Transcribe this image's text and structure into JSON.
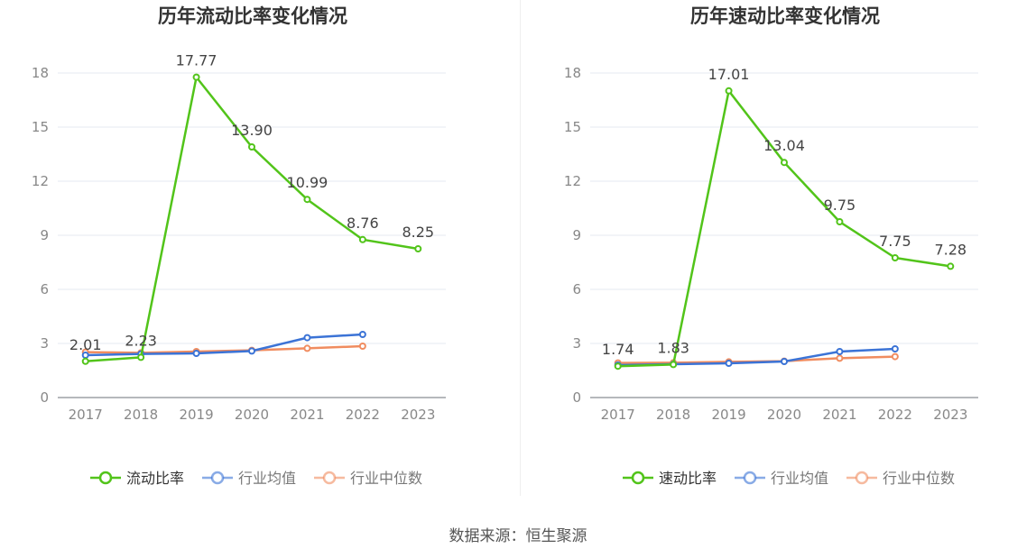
{
  "footer": {
    "source": "数据来源：恒生聚源"
  },
  "chart_data": [
    {
      "type": "line",
      "title": "历年流动比率变化情况",
      "categories": [
        "2017",
        "2018",
        "2019",
        "2020",
        "2021",
        "2022",
        "2023"
      ],
      "ylim": [
        0,
        18
      ],
      "yticks": [
        0,
        3,
        6,
        9,
        12,
        15,
        18
      ],
      "grid": true,
      "legend_position": "bottom",
      "series": [
        {
          "name": "流动比率",
          "color": "#52c41a",
          "labels": true,
          "values": [
            2.01,
            2.23,
            17.77,
            13.9,
            10.99,
            8.76,
            8.25
          ],
          "value_labels": [
            "2.01",
            "2.23",
            "17.77",
            "13.90",
            "10.99",
            "8.76",
            "8.25"
          ]
        },
        {
          "name": "行业均值",
          "color": "#3b73d6",
          "labels": false,
          "values": [
            2.35,
            2.42,
            2.45,
            2.58,
            3.32,
            3.5,
            null
          ]
        },
        {
          "name": "行业中位数",
          "color": "#f08c5f",
          "labels": false,
          "values": [
            2.52,
            2.48,
            2.55,
            2.62,
            2.73,
            2.85,
            null
          ]
        }
      ]
    },
    {
      "type": "line",
      "title": "历年速动比率变化情况",
      "categories": [
        "2017",
        "2018",
        "2019",
        "2020",
        "2021",
        "2022",
        "2023"
      ],
      "ylim": [
        0,
        18
      ],
      "yticks": [
        0,
        3,
        6,
        9,
        12,
        15,
        18
      ],
      "grid": true,
      "legend_position": "bottom",
      "series": [
        {
          "name": "速动比率",
          "color": "#52c41a",
          "labels": true,
          "values": [
            1.74,
            1.83,
            17.01,
            13.04,
            9.75,
            7.75,
            7.28
          ],
          "value_labels": [
            "1.74",
            "1.83",
            "17.01",
            "13.04",
            "9.75",
            "7.75",
            "7.28"
          ]
        },
        {
          "name": "行业均值",
          "color": "#3b73d6",
          "labels": false,
          "values": [
            1.8,
            1.85,
            1.9,
            2.0,
            2.55,
            2.7,
            null
          ]
        },
        {
          "name": "行业中位数",
          "color": "#f08c5f",
          "labels": false,
          "values": [
            1.92,
            1.93,
            1.98,
            2.02,
            2.18,
            2.27,
            null
          ]
        }
      ]
    }
  ]
}
